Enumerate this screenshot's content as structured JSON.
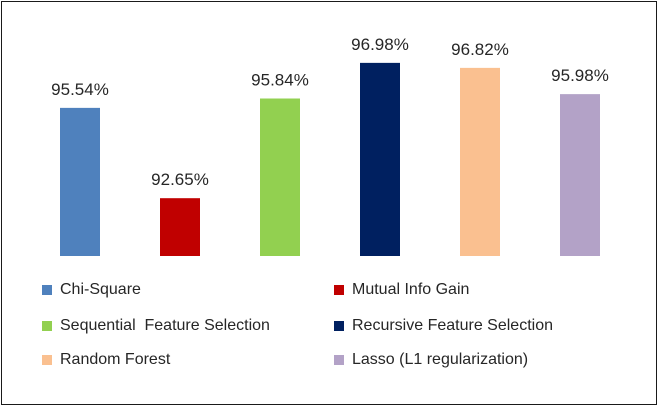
{
  "chart_data": {
    "type": "bar",
    "categories": [
      "Chi-Square",
      "Mutual Info Gain",
      "Sequential  Feature Selection",
      "Recursive Feature Selection",
      "Random Forest",
      "Lasso (L1 regularization)"
    ],
    "values": [
      95.54,
      92.65,
      95.84,
      96.98,
      96.82,
      95.98
    ],
    "value_labels": [
      "95.54%",
      "92.65%",
      "95.84%",
      "96.98%",
      "96.82%",
      "95.98%"
    ],
    "colors": [
      "#4f81bd",
      "#c00000",
      "#92d050",
      "#002060",
      "#fac090",
      "#b3a2c7"
    ],
    "title": "",
    "xlabel": "",
    "ylabel": "",
    "ylim": [
      90.8,
      97.2
    ],
    "grid": false,
    "legend_position": "bottom"
  }
}
